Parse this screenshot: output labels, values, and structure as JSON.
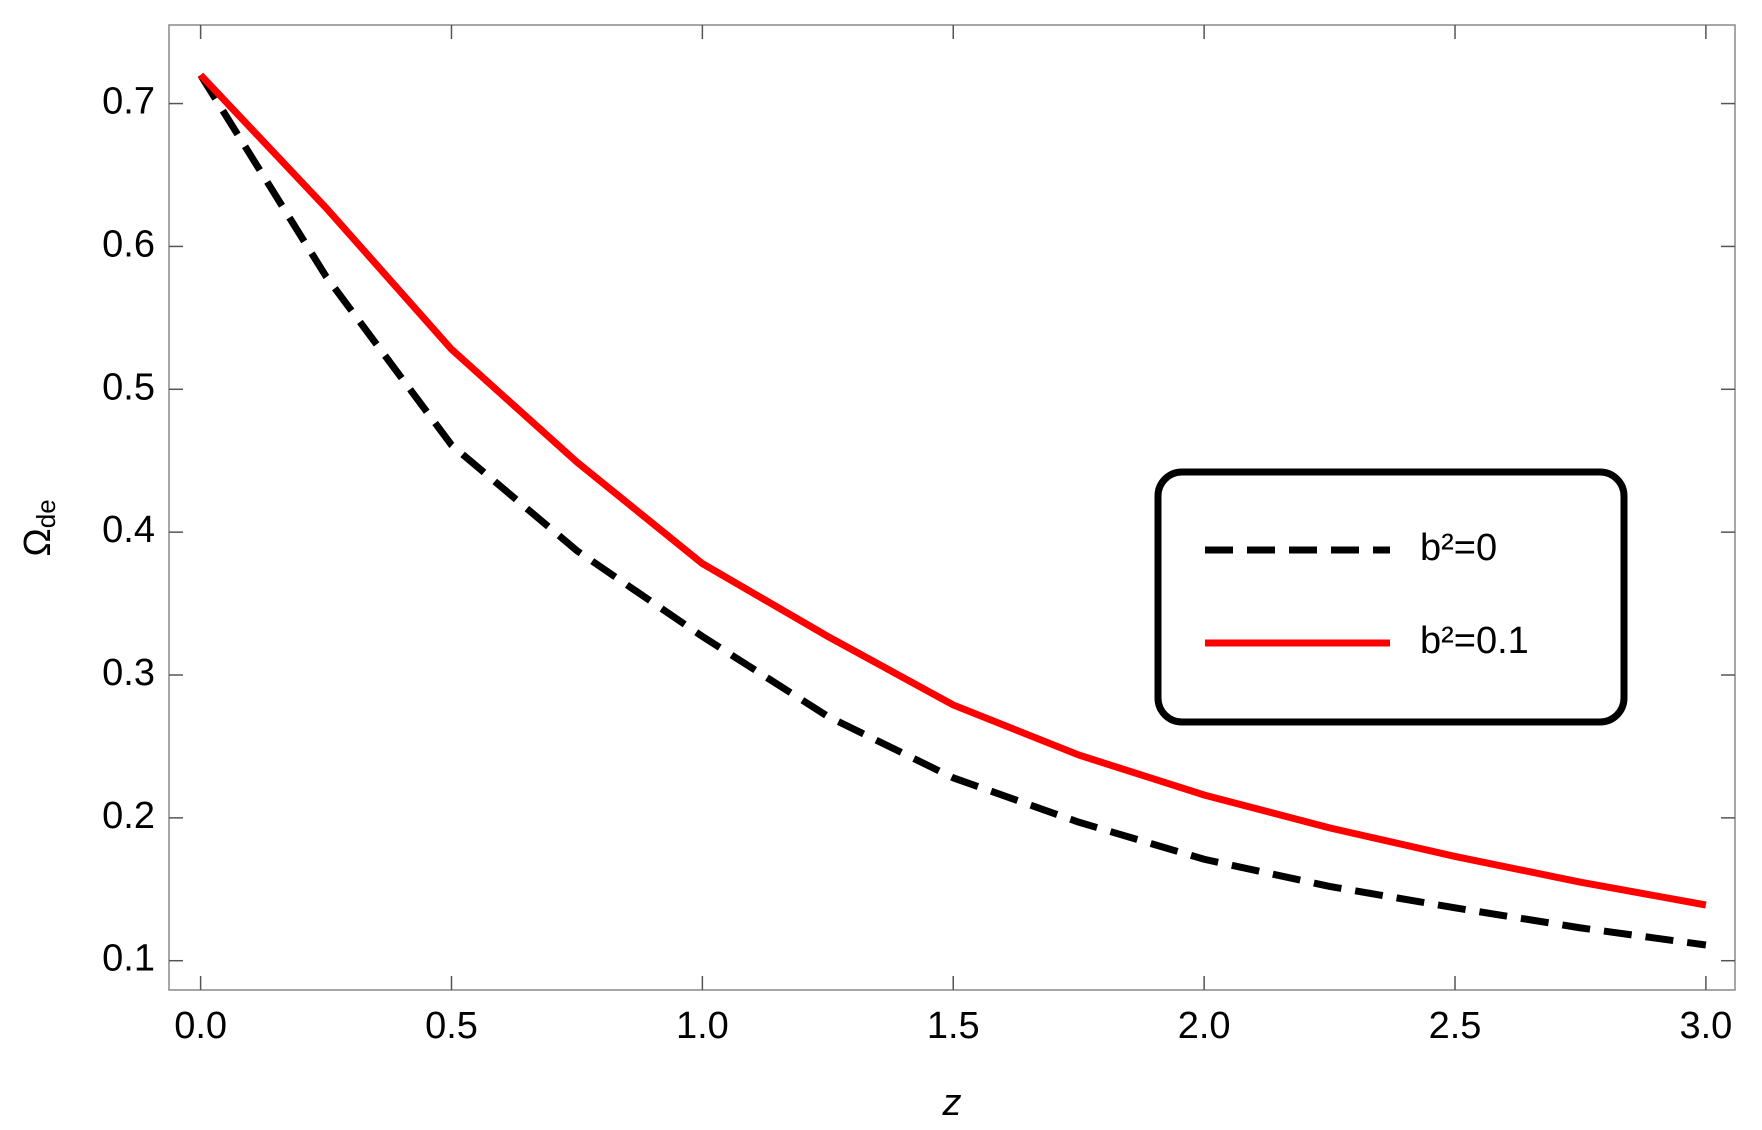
{
  "chart_data": {
    "type": "line",
    "xlabel": "z",
    "ylabel": "Ω",
    "ylabel_sub": "de",
    "x": [
      0,
      0.25,
      0.5,
      0.75,
      1.0,
      1.25,
      1.5,
      1.75,
      2.0,
      2.25,
      2.5,
      2.75,
      3.0
    ],
    "series": [
      {
        "name": "b²=0",
        "color": "#000000",
        "dashed": true,
        "values": [
          0.72,
          0.579,
          0.461,
          0.387,
          0.327,
          0.271,
          0.228,
          0.197,
          0.171,
          0.152,
          0.137,
          0.123,
          0.111
        ]
      },
      {
        "name": "b²=0.1",
        "color": "#ff0000",
        "dashed": false,
        "values": [
          0.72,
          0.627,
          0.528,
          0.449,
          0.378,
          0.327,
          0.279,
          0.244,
          0.216,
          0.193,
          0.173,
          0.155,
          0.139
        ]
      }
    ],
    "xlim": [
      -0.063,
      3.058
    ],
    "ylim": [
      0.0795,
      0.755
    ],
    "xticks": [
      {
        "value": 0,
        "label": "0.0"
      },
      0.5,
      {
        "value": 1,
        "label": "1.0"
      },
      1.5,
      {
        "value": 2,
        "label": "2.0"
      },
      2.5,
      {
        "value": 3,
        "label": "3.0"
      }
    ],
    "yticks": [
      0.1,
      0.2,
      0.3,
      0.4,
      0.5,
      0.6,
      0.7
    ],
    "legend": "right"
  }
}
